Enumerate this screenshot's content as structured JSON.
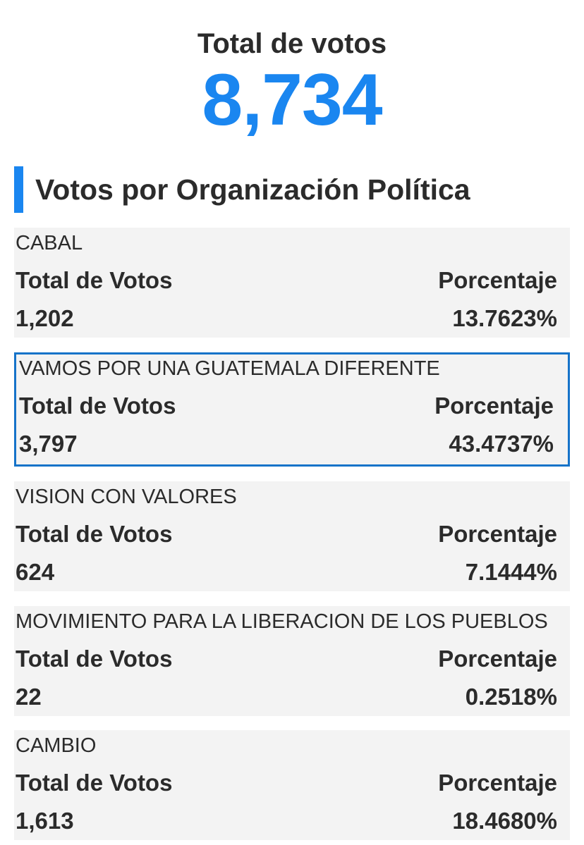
{
  "summary": {
    "total_label": "Total de votos",
    "total_value": "8,734"
  },
  "section": {
    "title": "Votos por Organización Política"
  },
  "colors": {
    "accent": "#1a86f0",
    "selected_border": "#1673c9",
    "card_background": "#f3f3f3",
    "text": "#2b2b2b"
  },
  "parties": [
    {
      "name": "CABAL",
      "votes_label": "Total de Votos",
      "pct_label": "Porcentaje",
      "votes": "1,202",
      "pct": "13.7623%"
    },
    {
      "name": "VAMOS POR UNA GUATEMALA DIFERENTE",
      "votes_label": "Total de Votos",
      "pct_label": "Porcentaje",
      "votes": "3,797",
      "pct": "43.4737%"
    },
    {
      "name": "VISION CON VALORES",
      "votes_label": "Total de Votos",
      "pct_label": "Porcentaje",
      "votes": "624",
      "pct": "7.1444%"
    },
    {
      "name": "MOVIMIENTO PARA LA LIBERACION DE LOS PUEBLOS",
      "votes_label": "Total de Votos",
      "pct_label": "Porcentaje",
      "votes": "22",
      "pct": "0.2518%"
    },
    {
      "name": "CAMBIO",
      "votes_label": "Total de Votos",
      "pct_label": "Porcentaje",
      "votes": "1,613",
      "pct": "18.4680%"
    }
  ]
}
